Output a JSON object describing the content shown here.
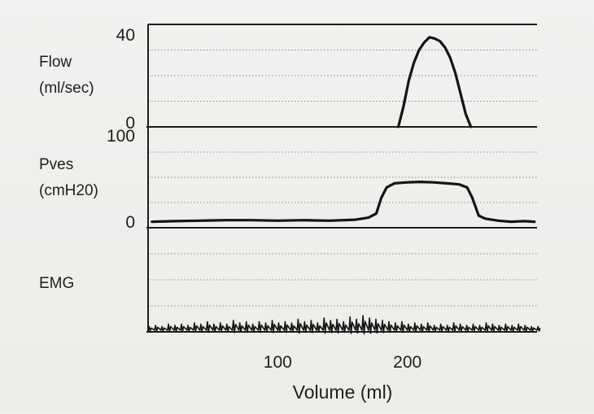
{
  "chart_data": {
    "type": "line",
    "xlabel": "Volume (ml)",
    "xlim": [
      0,
      300
    ],
    "x_ticks": [
      {
        "value": 100,
        "label": "100"
      },
      {
        "value": 200,
        "label": "200"
      }
    ],
    "panels": [
      {
        "label_lines": [
          "Flow",
          "(ml/sec)"
        ],
        "ylim": [
          0,
          40
        ],
        "tick_labels": {
          "top": "40",
          "bottom": "0"
        },
        "grid_lines": 3,
        "series": [
          {
            "x": [
              193,
              197,
              201,
              205,
              209,
              213,
              217,
              221,
              225,
              229,
              233,
              237,
              241,
              245,
              249
            ],
            "values": [
              0,
              8,
              18,
              25,
              30,
              33,
              35,
              34.5,
              33.5,
              31,
              27,
              21,
              13,
              5,
              0
            ]
          }
        ]
      },
      {
        "label_lines": [
          "Pves",
          "(cmH20)"
        ],
        "ylim": [
          0,
          100
        ],
        "tick_labels": {
          "top": "100",
          "bottom": "0"
        },
        "grid_lines": 3,
        "series": [
          {
            "x": [
              3,
              20,
              40,
              60,
              80,
              100,
              120,
              140,
              160,
              170,
              176,
              180,
              184,
              190,
              200,
              210,
              220,
              230,
              240,
              246,
              250,
              255,
              260,
              270,
              280,
              290,
              298
            ],
            "values": [
              6,
              6.5,
              7,
              7.5,
              7.5,
              7,
              7.5,
              7,
              8,
              10,
              14,
              30,
              40,
              44,
              45,
              45.5,
              45,
              44,
              43,
              40,
              30,
              12,
              9,
              7,
              6,
              6.5,
              6
            ]
          }
        ]
      },
      {
        "label_lines": [
          "EMG"
        ],
        "grid_lines": 3,
        "series": [
          {
            "x": [
              0,
              5,
              10,
              15,
              20,
              25,
              30,
              35,
              40,
              45,
              50,
              55,
              60,
              65,
              70,
              75,
              80,
              85,
              90,
              95,
              100,
              105,
              110,
              115,
              120,
              125,
              130,
              135,
              140,
              145,
              150,
              155,
              160,
              165,
              170,
              175,
              180,
              185,
              190,
              195,
              200,
              205,
              210,
              215,
              220,
              225,
              230,
              235,
              240,
              245,
              250,
              255,
              260,
              265,
              270,
              275,
              280,
              285,
              290,
              295,
              300
            ],
            "values": [
              3,
              4,
              3,
              5,
              4,
              5,
              4,
              6,
              5,
              7,
              5,
              6,
              5,
              8,
              6,
              7,
              5,
              7,
              6,
              8,
              6,
              7,
              6,
              9,
              7,
              8,
              6,
              10,
              8,
              9,
              7,
              11,
              9,
              12,
              10,
              9,
              8,
              7,
              6,
              7,
              5,
              6,
              5,
              6,
              4,
              5,
              4,
              6,
              5,
              4,
              5,
              4,
              6,
              5,
              4,
              5,
              4,
              5,
              4,
              3,
              3
            ]
          }
        ]
      }
    ]
  }
}
